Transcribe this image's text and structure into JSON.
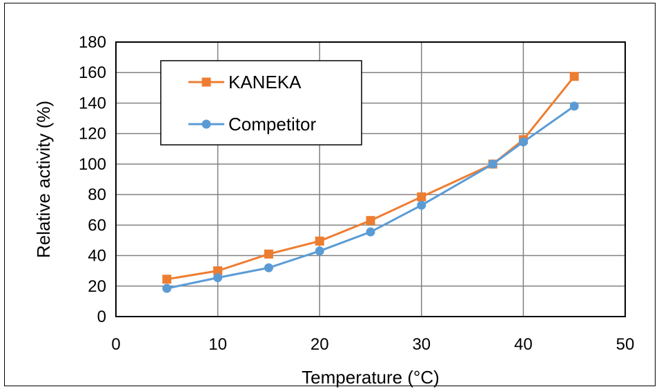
{
  "chart_data": {
    "type": "line",
    "title": "",
    "xlabel": "Temperature (°C)",
    "ylabel": "Relative activity (%)",
    "xlim": [
      0,
      50
    ],
    "ylim": [
      0,
      180
    ],
    "xticks": [
      0,
      10,
      20,
      30,
      40,
      50
    ],
    "yticks": [
      0,
      20,
      40,
      60,
      80,
      100,
      120,
      140,
      160,
      180
    ],
    "grid": true,
    "legend_position": "top-left",
    "series": [
      {
        "name": "KANEKA",
        "color": "#ED7D31",
        "marker": "square",
        "x": [
          5,
          10,
          15,
          20,
          25,
          30,
          37,
          40,
          45
        ],
        "y": [
          24.5,
          30,
          41,
          49.5,
          63,
          78.5,
          100,
          116,
          157.5
        ]
      },
      {
        "name": "Competitor",
        "color": "#5B9BD5",
        "marker": "circle",
        "x": [
          5,
          10,
          15,
          20,
          25,
          30,
          37,
          40,
          45
        ],
        "y": [
          18.5,
          25.5,
          32,
          43,
          55.5,
          73,
          100,
          114.5,
          138
        ]
      }
    ]
  }
}
